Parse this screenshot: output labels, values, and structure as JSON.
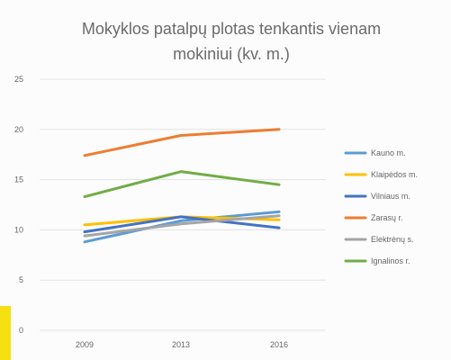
{
  "chart_data": {
    "type": "line",
    "title_lines": [
      "Mokyklos patalpų plotas tenkantis vienam",
      "mokiniui (kv. m.)"
    ],
    "categories": [
      "2009",
      "2013",
      "2016"
    ],
    "ylim": [
      0,
      25
    ],
    "yticks": [
      "0",
      "5",
      "10",
      "15",
      "20",
      "25"
    ],
    "grid": true,
    "legend_position": "right",
    "series": [
      {
        "name": "Kauno m.",
        "color": "#5b9bd5",
        "values": [
          8.8,
          10.9,
          11.8
        ]
      },
      {
        "name": "Klaipėdos m.",
        "color": "#ffc000",
        "values": [
          10.5,
          11.3,
          11.0
        ]
      },
      {
        "name": "Vilniaus m.",
        "color": "#4472c4",
        "values": [
          9.8,
          11.3,
          10.2
        ]
      },
      {
        "name": "Zarasų r.",
        "color": "#ed7d31",
        "values": [
          17.4,
          19.4,
          20.0
        ]
      },
      {
        "name": "Elektrėnų s.",
        "color": "#a5a5a5",
        "values": [
          9.4,
          10.6,
          11.4
        ]
      },
      {
        "name": "Ignalinos r.",
        "color": "#70ad47",
        "values": [
          13.3,
          15.8,
          14.5
        ]
      }
    ]
  },
  "colors": {
    "accent_bar": "#f5e012",
    "background": "#fcfcfc"
  }
}
